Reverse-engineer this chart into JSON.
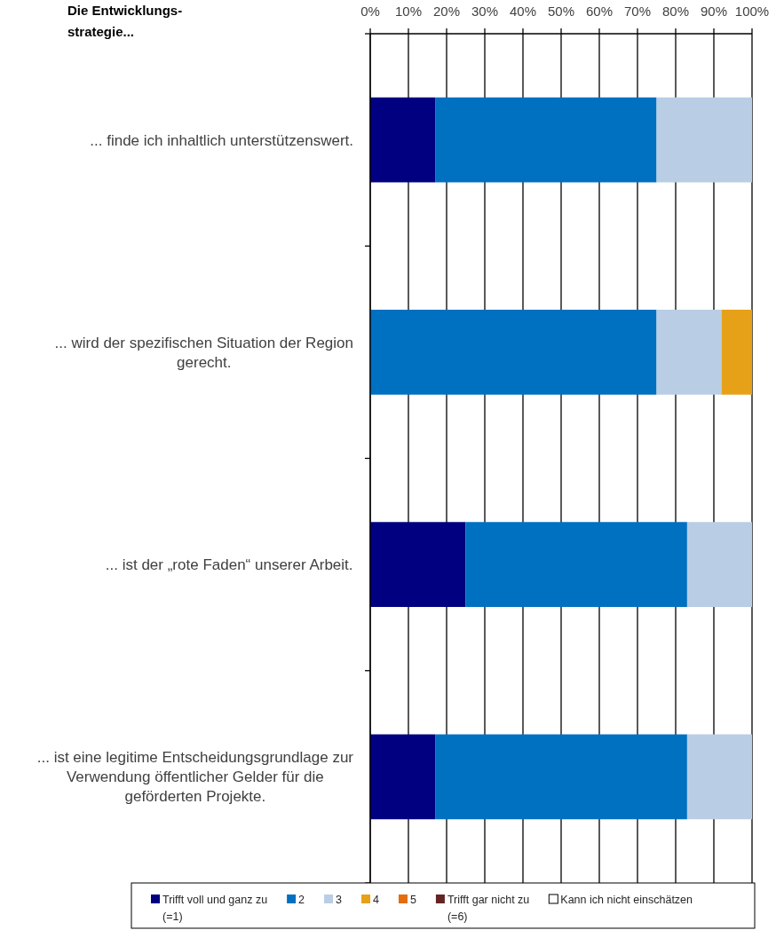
{
  "chart_data": {
    "type": "bar",
    "orientation": "horizontal",
    "stacked": true,
    "ylabel": "Die Entwicklungs-strategie...",
    "categories": [
      "... finde ich inhaltlich unterstützenswert.",
      "... wird der spezifischen Situation der Region gerecht.",
      "... ist der „rote Faden“ unserer Arbeit.",
      "... ist eine legitime Entscheidungsgrundlage zur Verwendung öffentlicher Gelder für die geförderten Projekte."
    ],
    "series": [
      {
        "name": "Trifft voll und ganz zu (=1)",
        "color": "#000080",
        "values": [
          17,
          0,
          25,
          17
        ]
      },
      {
        "name": "2",
        "color": "#0070c0",
        "values": [
          58,
          75,
          58,
          66
        ]
      },
      {
        "name": "3",
        "color": "#b9cde5",
        "values": [
          25,
          17,
          17,
          17
        ]
      },
      {
        "name": "4",
        "color": "#e6a118",
        "values": [
          0,
          8,
          0,
          0
        ]
      },
      {
        "name": "5",
        "color": "#e46c0a",
        "values": [
          0,
          0,
          0,
          0
        ]
      },
      {
        "name": "Trifft gar nicht zu (=6)",
        "color": "#632523",
        "values": [
          0,
          0,
          0,
          0
        ]
      },
      {
        "name": "Kann ich nicht einschätzen",
        "color": "#ffffff",
        "values": [
          0,
          0,
          0,
          0
        ]
      }
    ],
    "xlim": [
      0,
      100
    ],
    "xticks": [
      {
        "value": 0,
        "label": "0%"
      },
      {
        "value": 10,
        "label": "10%"
      },
      {
        "value": 20,
        "label": "20%"
      },
      {
        "value": 30,
        "label": "30%"
      },
      {
        "value": 40,
        "label": "40%"
      },
      {
        "value": 50,
        "label": "50%"
      },
      {
        "value": 60,
        "label": "60%"
      },
      {
        "value": 70,
        "label": "70%"
      },
      {
        "value": 80,
        "label": "80%"
      },
      {
        "value": 90,
        "label": "90%"
      },
      {
        "value": 100,
        "label": "100%"
      }
    ],
    "grid": "x",
    "legend": "bottom"
  }
}
